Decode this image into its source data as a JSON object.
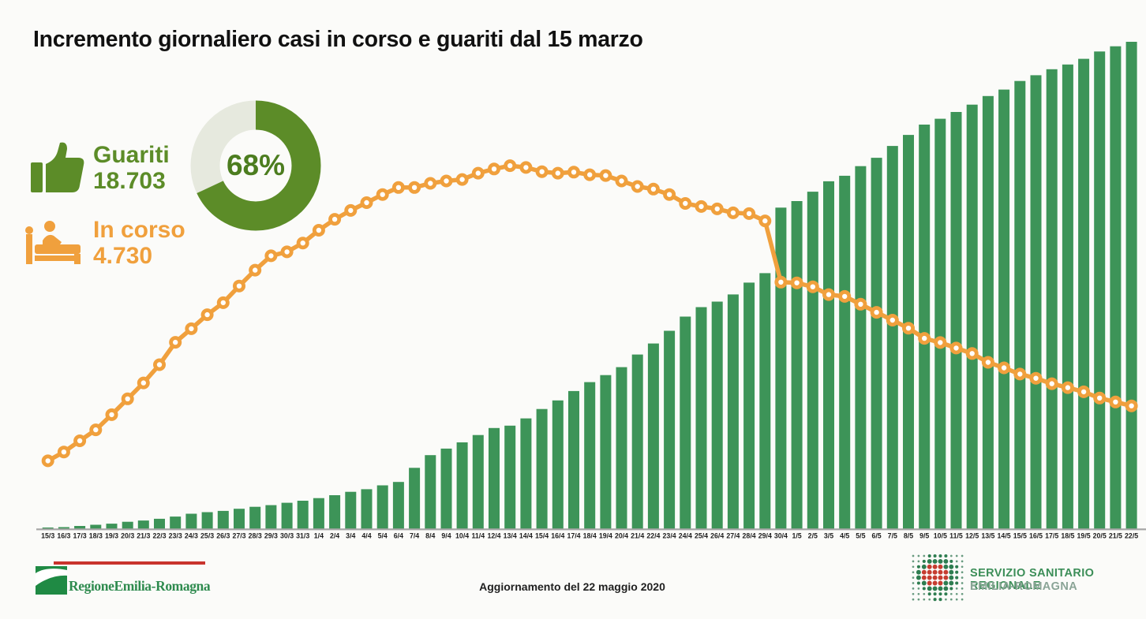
{
  "title": "Incremento giornaliero casi in corso e guariti dal 15 marzo",
  "legend": {
    "guariti": {
      "label": "Guariti",
      "value": "18.703"
    },
    "in_corso": {
      "label": "In corso",
      "value": "4.730"
    }
  },
  "donut": {
    "percent": 68,
    "percent_label": "68%",
    "fg_color": "#5c8c28",
    "bg_color": "#e6e9de"
  },
  "colors": {
    "bar_green": "#3d9458",
    "line_orange": "#f0a03d",
    "legend_green": "#5c8c28",
    "axis_gray": "#a6a6a6",
    "label_dark": "#1e1e1e"
  },
  "chart_data": {
    "type": "bar",
    "note": "combo: cumulative bars (Guariti) + line with markers (In corso); no y axis shown",
    "categories": [
      "15/3",
      "16/3",
      "17/3",
      "18/3",
      "19/3",
      "20/3",
      "21/3",
      "22/3",
      "23/3",
      "24/3",
      "25/3",
      "26/3",
      "27/3",
      "28/3",
      "29/3",
      "30/3",
      "31/3",
      "1/4",
      "2/4",
      "3/4",
      "4/4",
      "5/4",
      "6/4",
      "7/4",
      "8/4",
      "9/4",
      "10/4",
      "11/4",
      "12/4",
      "13/4",
      "14/4",
      "15/4",
      "16/4",
      "17/4",
      "18/4",
      "19/4",
      "20/4",
      "21/4",
      "22/4",
      "23/4",
      "24/4",
      "25/4",
      "26/4",
      "27/4",
      "28/4",
      "29/4",
      "30/4",
      "1/5",
      "2/5",
      "3/5",
      "4/5",
      "5/5",
      "6/5",
      "7/5",
      "8/5",
      "9/5",
      "10/5",
      "11/5",
      "12/5",
      "13/5",
      "14/5",
      "15/5",
      "16/5",
      "17/5",
      "18/5",
      "19/5",
      "20/5",
      "21/5",
      "22/5"
    ],
    "series": [
      {
        "name": "Guariti",
        "type": "bar",
        "color": "#3d9458",
        "values": [
          60,
          75,
          120,
          165,
          210,
          280,
          330,
          395,
          480,
          590,
          650,
          700,
          780,
          855,
          920,
          1010,
          1090,
          1190,
          1300,
          1430,
          1530,
          1680,
          1810,
          2350,
          2840,
          3090,
          3330,
          3610,
          3880,
          3970,
          4250,
          4610,
          4940,
          5300,
          5640,
          5910,
          6215,
          6700,
          7125,
          7610,
          8155,
          8520,
          8730,
          9005,
          9460,
          9825,
          12340,
          12590,
          12950,
          13350,
          13560,
          13930,
          14250,
          14705,
          15130,
          15525,
          15750,
          16010,
          16290,
          16620,
          16870,
          17200,
          17420,
          17650,
          17830,
          18050,
          18330,
          18530,
          18703
        ]
      },
      {
        "name": "In corso",
        "type": "line",
        "color": "#f0a03d",
        "values": [
          2620,
          2960,
          3390,
          3810,
          4390,
          5000,
          5610,
          6310,
          7170,
          7690,
          8230,
          8690,
          9330,
          9940,
          10490,
          10640,
          10980,
          11470,
          11890,
          12230,
          12530,
          12840,
          13110,
          13110,
          13270,
          13360,
          13420,
          13660,
          13820,
          13950,
          13880,
          13720,
          13660,
          13700,
          13600,
          13570,
          13360,
          13150,
          13050,
          12840,
          12500,
          12380,
          12290,
          12140,
          12110,
          11830,
          9480,
          9450,
          9300,
          9000,
          8930,
          8630,
          8320,
          8020,
          7710,
          7320,
          7160,
          6950,
          6740,
          6400,
          6190,
          5950,
          5790,
          5580,
          5430,
          5270,
          5030,
          4880,
          4730
        ]
      }
    ],
    "title": "Incremento giornaliero casi in corso e guariti dal 15 marzo",
    "xlabel": "",
    "ylabel": "",
    "ylim": [
      0,
      18703
    ],
    "grid": false,
    "legend_position": "top-left"
  },
  "footer": {
    "update_text": "Aggiornamento del 22 maggio 2020",
    "region_logo_text": "RegioneEmilia-Romagna",
    "ssr_line1": "SERVIZIO SANITARIO REGIONALE",
    "ssr_line2": "EMILIA-ROMAGNA",
    "dots_pattern": [
      "sssmmmmsss",
      "ssmbbbbmss",
      "smbRRRbbms",
      "sbRRRRRbms",
      "sbRRRRRbms",
      "smbRRRbbms",
      "ssmbbbbmss",
      "sssmmmmsss",
      "ssssmmssss"
    ],
    "dots_green": "#2e7d50",
    "dots_red": "#c63d30"
  }
}
